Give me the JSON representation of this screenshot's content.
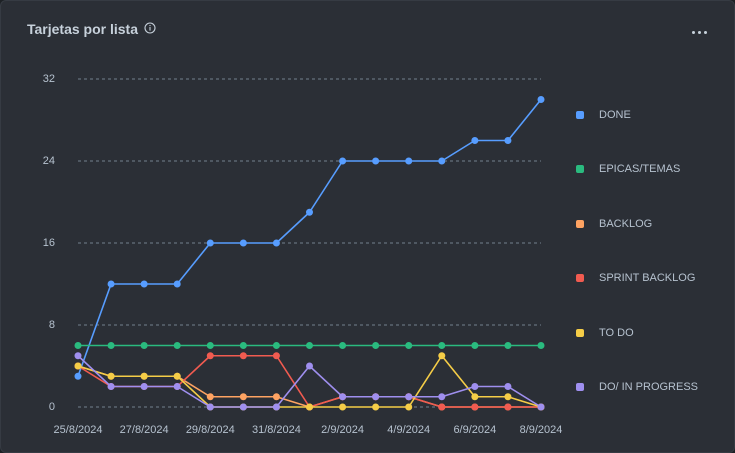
{
  "card": {
    "title": "Tarjetas por lista",
    "info_icon": "info-icon",
    "more_icon": "more-horizontal-icon"
  },
  "colors": {
    "background": "#2b2f36",
    "grid": "#8c9bab",
    "text": "#b6c2cf"
  },
  "chart_data": {
    "type": "line",
    "x": [
      "25/8/2024",
      "26/8/2024",
      "27/8/2024",
      "28/8/2024",
      "29/8/2024",
      "30/8/2024",
      "31/8/2024",
      "1/9/2024",
      "2/9/2024",
      "3/9/2024",
      "4/9/2024",
      "5/9/2024",
      "6/9/2024",
      "7/9/2024",
      "8/9/2024"
    ],
    "x_tick_labels": [
      "25/8/2024",
      "27/8/2024",
      "29/8/2024",
      "31/8/2024",
      "2/9/2024",
      "4/9/2024",
      "6/9/2024",
      "8/9/2024"
    ],
    "y_tick_labels": [
      "0",
      "8",
      "16",
      "24",
      "32"
    ],
    "ylim": [
      0,
      32
    ],
    "grid": "horizontal dashed",
    "legend_position": "right",
    "series": [
      {
        "name": "DONE",
        "color": "#579dff",
        "values": [
          3,
          12,
          12,
          12,
          16,
          16,
          16,
          19,
          24,
          24,
          24,
          24,
          26,
          26,
          30
        ]
      },
      {
        "name": "EPICAS/TEMAS",
        "color": "#2abb7f",
        "values": [
          6,
          6,
          6,
          6,
          6,
          6,
          6,
          6,
          6,
          6,
          6,
          6,
          6,
          6,
          6
        ]
      },
      {
        "name": "BACKLOG",
        "color": "#fea362",
        "values": [
          4,
          3,
          3,
          3,
          1,
          1,
          1,
          0,
          1,
          1,
          1,
          0,
          0,
          0,
          0
        ]
      },
      {
        "name": "SPRINT BACKLOG",
        "color": "#f15b50",
        "values": [
          4,
          2,
          2,
          2,
          5,
          5,
          5,
          0,
          1,
          1,
          1,
          0,
          0,
          0,
          0
        ]
      },
      {
        "name": "TO DO",
        "color": "#f5cd47",
        "values": [
          4,
          3,
          3,
          3,
          0,
          0,
          0,
          0,
          0,
          0,
          0,
          5,
          1,
          1,
          0
        ]
      },
      {
        "name": "DO/ IN PROGRESS",
        "color": "#9f8fef",
        "values": [
          5,
          2,
          2,
          2,
          0,
          0,
          0,
          4,
          1,
          1,
          1,
          1,
          2,
          2,
          0
        ]
      }
    ]
  }
}
